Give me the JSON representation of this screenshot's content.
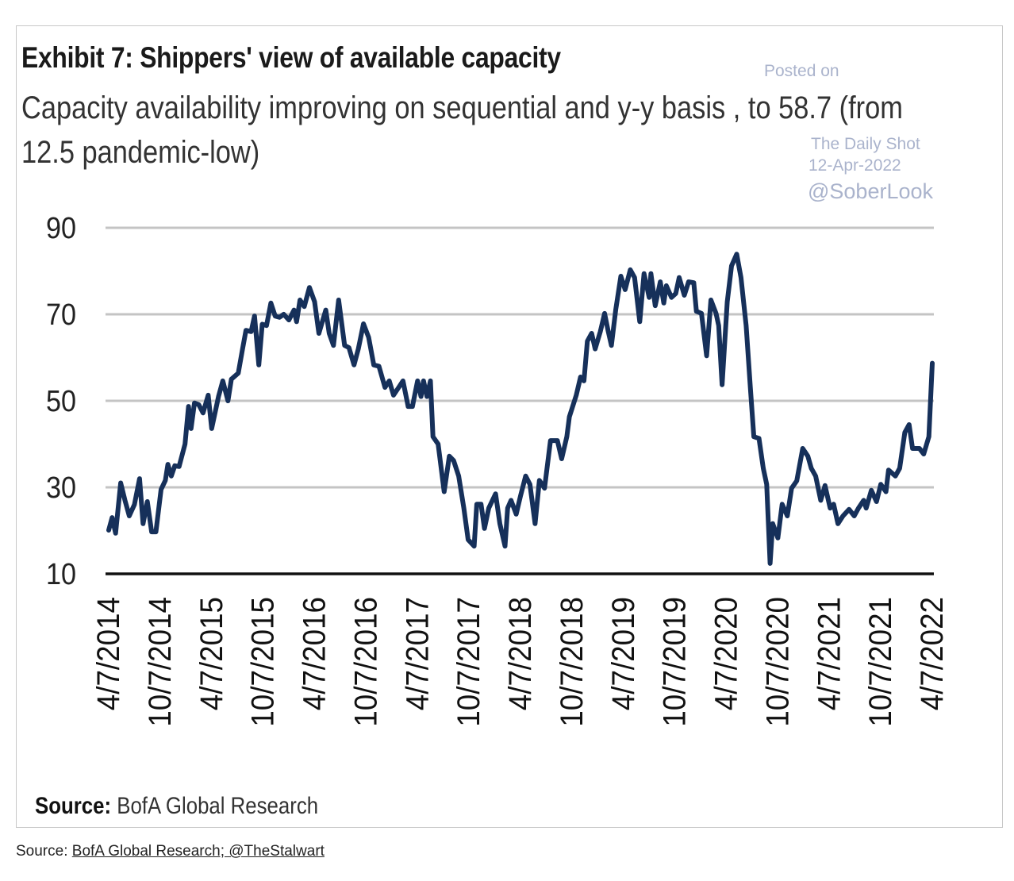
{
  "chart_data": {
    "type": "line",
    "title": "Exhibit 7: Shippers' view of available capacity",
    "subtitle": "Capacity availability improving on sequential and y-y basis , to 58.7 (from 12.5 pandemic-low)",
    "xlabel": "",
    "ylabel": "",
    "ylim": [
      10,
      90
    ],
    "yticks": [
      "90",
      "70",
      "50",
      "30",
      "10"
    ],
    "ytick_values": [
      90,
      70,
      50,
      30,
      10
    ],
    "xticks": [
      "4/7/2014",
      "10/7/2014",
      "4/7/2015",
      "10/7/2015",
      "4/7/2016",
      "10/7/2016",
      "4/7/2017",
      "10/7/2017",
      "4/7/2018",
      "10/7/2018",
      "4/7/2019",
      "10/7/2019",
      "4/7/2020",
      "10/7/2020",
      "4/7/2021",
      "10/7/2021",
      "4/7/2022"
    ],
    "x_unit": "months since 4/7/2014",
    "xlim": [
      0,
      96
    ],
    "grid": true,
    "series": [
      {
        "name": "Available capacity",
        "color": "#16305a",
        "points": [
          [
            0,
            20.1
          ],
          [
            0.4,
            23
          ],
          [
            0.8,
            19.4
          ],
          [
            1.4,
            31
          ],
          [
            1.9,
            27
          ],
          [
            2.4,
            23.4
          ],
          [
            3.0,
            26
          ],
          [
            3.6,
            32
          ],
          [
            4.0,
            21.6
          ],
          [
            4.5,
            26.7
          ],
          [
            5.0,
            19.7
          ],
          [
            5.5,
            19.7
          ],
          [
            6.1,
            29.5
          ],
          [
            6.6,
            31.6
          ],
          [
            6.9,
            35.3
          ],
          [
            7.3,
            32.6
          ],
          [
            7.7,
            35
          ],
          [
            8.2,
            34.8
          ],
          [
            8.9,
            40
          ],
          [
            9.3,
            48.7
          ],
          [
            9.6,
            43.6
          ],
          [
            10.0,
            49.5
          ],
          [
            10.5,
            49.1
          ],
          [
            11.0,
            47.2
          ],
          [
            11.6,
            51.3
          ],
          [
            12.0,
            43.6
          ],
          [
            12.8,
            51
          ],
          [
            13.3,
            54.6
          ],
          [
            13.9,
            50
          ],
          [
            14.3,
            55
          ],
          [
            15.1,
            56.4
          ],
          [
            15.6,
            62
          ],
          [
            16.0,
            66.3
          ],
          [
            16.6,
            66
          ],
          [
            17.0,
            69.6
          ],
          [
            17.5,
            58.3
          ],
          [
            17.9,
            67.7
          ],
          [
            18.4,
            67.4
          ],
          [
            18.9,
            72.6
          ],
          [
            19.4,
            69.6
          ],
          [
            19.9,
            69.3
          ],
          [
            20.4,
            70
          ],
          [
            21.0,
            68.7
          ],
          [
            21.6,
            71
          ],
          [
            21.9,
            68.3
          ],
          [
            22.3,
            73.3
          ],
          [
            22.8,
            71.8
          ],
          [
            23.4,
            76.2
          ],
          [
            24.0,
            72.9
          ],
          [
            24.5,
            65.6
          ],
          [
            25.3,
            71
          ],
          [
            25.7,
            65.6
          ],
          [
            26.2,
            62.8
          ],
          [
            26.8,
            73.3
          ],
          [
            27.5,
            62.8
          ],
          [
            28.0,
            62.3
          ],
          [
            28.6,
            58.3
          ],
          [
            29.1,
            62
          ],
          [
            29.7,
            67.8
          ],
          [
            30.3,
            64.7
          ],
          [
            30.9,
            58.3
          ],
          [
            31.5,
            58
          ],
          [
            32.2,
            53.1
          ],
          [
            32.7,
            54.6
          ],
          [
            33.2,
            51.3
          ],
          [
            33.8,
            53.1
          ],
          [
            34.3,
            54.6
          ],
          [
            34.9,
            48.7
          ],
          [
            35.4,
            48.7
          ],
          [
            36.0,
            54.6
          ],
          [
            36.4,
            51
          ],
          [
            36.7,
            54.6
          ],
          [
            37.1,
            51
          ],
          [
            37.5,
            54.6
          ],
          [
            37.8,
            41.7
          ],
          [
            38.4,
            40
          ],
          [
            39.1,
            29
          ],
          [
            39.7,
            37.2
          ],
          [
            40.2,
            36.2
          ],
          [
            40.8,
            32.6
          ],
          [
            41.4,
            25.2
          ],
          [
            41.9,
            17.9
          ],
          [
            42.6,
            16.4
          ],
          [
            42.9,
            26.1
          ],
          [
            43.4,
            26.1
          ],
          [
            43.8,
            20.5
          ],
          [
            44.3,
            25.2
          ],
          [
            45.1,
            28.5
          ],
          [
            45.6,
            21.6
          ],
          [
            46.2,
            16.4
          ],
          [
            46.5,
            25.2
          ],
          [
            46.9,
            27
          ],
          [
            47.5,
            23.8
          ],
          [
            48.0,
            28
          ],
          [
            48.6,
            32.6
          ],
          [
            49.1,
            30.7
          ],
          [
            49.7,
            21.6
          ],
          [
            50.2,
            31.6
          ],
          [
            50.8,
            29.8
          ],
          [
            51.5,
            40.8
          ],
          [
            52.3,
            40.8
          ],
          [
            52.8,
            36.6
          ],
          [
            53.4,
            41.7
          ],
          [
            53.7,
            46.3
          ],
          [
            54.5,
            51.3
          ],
          [
            55.0,
            55.5
          ],
          [
            55.4,
            54.6
          ],
          [
            55.8,
            63.8
          ],
          [
            56.3,
            65.6
          ],
          [
            56.7,
            62
          ],
          [
            57.3,
            66
          ],
          [
            57.8,
            70.2
          ],
          [
            58.2,
            66.3
          ],
          [
            58.6,
            62.8
          ],
          [
            59.1,
            71
          ],
          [
            59.7,
            78.8
          ],
          [
            60.2,
            75.7
          ],
          [
            60.8,
            80.3
          ],
          [
            61.3,
            78.5
          ],
          [
            61.9,
            68.3
          ],
          [
            62.4,
            79.4
          ],
          [
            63.0,
            73.9
          ],
          [
            63.2,
            79.4
          ],
          [
            63.7,
            72
          ],
          [
            64.3,
            77.5
          ],
          [
            64.7,
            72.6
          ],
          [
            65.0,
            76.6
          ],
          [
            65.6,
            73.9
          ],
          [
            66.1,
            74.8
          ],
          [
            66.5,
            78.5
          ],
          [
            67.1,
            74.4
          ],
          [
            67.6,
            77.5
          ],
          [
            68.2,
            77.3
          ],
          [
            68.5,
            70.7
          ],
          [
            69.1,
            70.2
          ],
          [
            69.7,
            60.4
          ],
          [
            70.2,
            73.3
          ],
          [
            70.8,
            70.2
          ],
          [
            71.1,
            67.4
          ],
          [
            71.5,
            53.7
          ],
          [
            72.1,
            72.9
          ],
          [
            72.6,
            81.2
          ],
          [
            73.2,
            83.9
          ],
          [
            73.7,
            78.5
          ],
          [
            74.3,
            67.4
          ],
          [
            74.8,
            52.8
          ],
          [
            75.2,
            41.7
          ],
          [
            75.8,
            41.3
          ],
          [
            76.3,
            34.4
          ],
          [
            76.7,
            30.7
          ],
          [
            77.1,
            12.4
          ],
          [
            77.4,
            21.6
          ],
          [
            78.0,
            18.3
          ],
          [
            78.5,
            26.1
          ],
          [
            79.1,
            23.4
          ],
          [
            79.6,
            29.8
          ],
          [
            80.2,
            31.5
          ],
          [
            80.9,
            39
          ],
          [
            81.5,
            37.2
          ],
          [
            81.9,
            34.4
          ],
          [
            82.4,
            32.6
          ],
          [
            83.0,
            27
          ],
          [
            83.5,
            30.4
          ],
          [
            84.1,
            25.2
          ],
          [
            84.5,
            26.1
          ],
          [
            85.0,
            21.6
          ],
          [
            85.6,
            23.4
          ],
          [
            86.3,
            24.9
          ],
          [
            86.9,
            23.4
          ],
          [
            87.4,
            25.2
          ],
          [
            88.0,
            27
          ],
          [
            88.3,
            25.2
          ],
          [
            88.9,
            29.3
          ],
          [
            89.5,
            26.7
          ],
          [
            90.0,
            30.7
          ],
          [
            90.6,
            29
          ],
          [
            90.9,
            34
          ],
          [
            91.7,
            32.6
          ],
          [
            92.2,
            34.4
          ],
          [
            92.8,
            42.7
          ],
          [
            93.3,
            44.5
          ],
          [
            93.7,
            39
          ],
          [
            94.5,
            39
          ],
          [
            95.0,
            37.7
          ],
          [
            95.6,
            41.7
          ],
          [
            96.0,
            58.7
          ]
        ]
      }
    ],
    "source_note": {
      "label": "Source:",
      "text": "BofA Global Research"
    },
    "watermark": {
      "line1": "Posted on",
      "line2": "The Daily Shot",
      "line3": "12-Apr-2022",
      "handle": "@SoberLook"
    }
  },
  "caption": {
    "prefix": "Source: ",
    "link_text": "BofA Global Research; @TheStalwart"
  }
}
